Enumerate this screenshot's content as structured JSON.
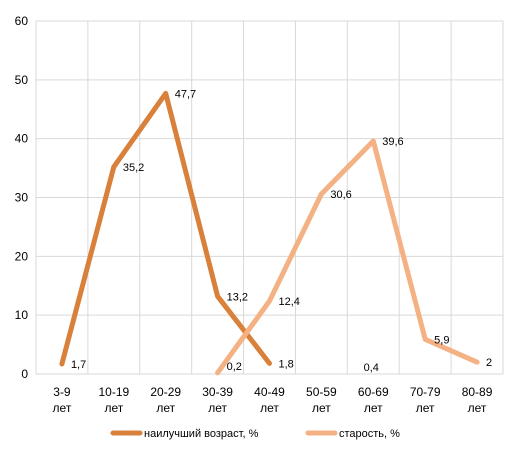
{
  "chart_data": {
    "type": "line",
    "categories": [
      "3-9 лет",
      "10-19 лет",
      "20-29 лет",
      "30-39 лет",
      "40-49 лет",
      "50-59 лет",
      "60-69 лет",
      "70-79 лет",
      "80-89 лет"
    ],
    "category_lines": [
      [
        "3-9",
        "лет"
      ],
      [
        "10-19",
        "лет"
      ],
      [
        "20-29",
        "лет"
      ],
      [
        "30-39",
        "лет"
      ],
      [
        "40-49",
        "лет"
      ],
      [
        "50-59",
        "лет"
      ],
      [
        "60-69",
        "лет"
      ],
      [
        "70-79",
        "лет"
      ],
      [
        "80-89",
        "лет"
      ]
    ],
    "y_ticks": [
      "0",
      "10",
      "20",
      "30",
      "40",
      "50",
      "60"
    ],
    "ylim": [
      0,
      60
    ],
    "grid": true,
    "legend_position": "bottom",
    "series": [
      {
        "name": "наилучший возраст, %",
        "color": "#D9803A",
        "values": [
          1.7,
          35.2,
          47.7,
          13.2,
          1.8,
          null,
          null,
          null,
          null
        ],
        "labels": [
          "1,7",
          "35,2",
          "47,7",
          "13,2",
          "1,8",
          null,
          null,
          null,
          null
        ]
      },
      {
        "name": "старость, %",
        "color": "#F4B183",
        "values": [
          null,
          null,
          null,
          0.2,
          12.4,
          30.6,
          39.6,
          5.9,
          2
        ],
        "labels": [
          null,
          null,
          null,
          "0,2",
          "12,4",
          "30,6",
          "39,6",
          "5,9",
          "2"
        ]
      }
    ],
    "extra_labels": [
      "0,4"
    ]
  }
}
